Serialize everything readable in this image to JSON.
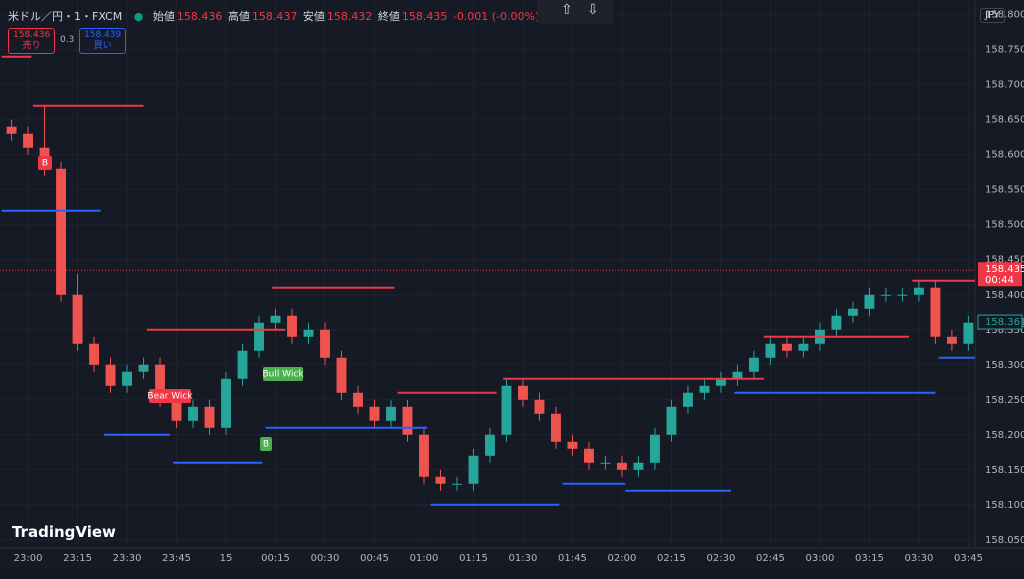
{
  "header": {
    "symbol": "米ドル／円・1・FXCM",
    "open_label": "始値",
    "open": 158.436,
    "high_label": "高値",
    "high": 158.437,
    "low_label": "安値",
    "low": 158.432,
    "close_label": "終値",
    "close": 158.435,
    "change": "-0.001 (-0.00%)"
  },
  "trade": {
    "sell_price": 158.436,
    "sell_label": "売り",
    "spread": 0.3,
    "buy_price": 158.439,
    "buy_label": "買い"
  },
  "currency": "JPY",
  "brand": "TradingView",
  "chart_data": {
    "type": "candlestick",
    "x": [
      -5,
      0,
      5,
      10,
      15,
      20,
      25,
      30,
      35,
      40,
      45,
      50,
      55,
      60,
      65,
      70,
      75,
      80,
      85,
      90,
      95,
      100,
      105,
      110,
      115,
      120,
      125,
      130,
      135,
      140,
      145,
      150,
      155,
      160,
      165,
      170,
      175,
      180,
      185,
      190,
      195,
      200,
      205,
      210,
      215,
      220,
      225,
      230,
      235,
      240,
      245,
      250,
      255,
      260,
      265,
      270,
      275,
      280,
      285
    ],
    "open": [
      158.64,
      158.63,
      158.61,
      158.58,
      158.4,
      158.33,
      158.3,
      158.27,
      158.29,
      158.3,
      158.25,
      158.22,
      158.24,
      158.21,
      158.28,
      158.32,
      158.36,
      158.37,
      158.34,
      158.35,
      158.31,
      158.26,
      158.24,
      158.22,
      158.24,
      158.2,
      158.14,
      158.13,
      158.13,
      158.17,
      158.2,
      158.27,
      158.25,
      158.23,
      158.19,
      158.18,
      158.16,
      158.16,
      158.15,
      158.16,
      158.2,
      158.24,
      158.26,
      158.27,
      158.28,
      158.29,
      158.31,
      158.33,
      158.32,
      158.33,
      158.35,
      158.37,
      158.38,
      158.4,
      158.4,
      158.4,
      158.41,
      158.34,
      158.33
    ],
    "high": [
      158.65,
      158.64,
      158.67,
      158.59,
      158.43,
      158.34,
      158.31,
      158.3,
      158.31,
      158.31,
      158.26,
      158.25,
      158.25,
      158.29,
      158.33,
      158.37,
      158.38,
      158.38,
      158.36,
      158.36,
      158.32,
      158.27,
      158.25,
      158.25,
      158.25,
      158.21,
      158.15,
      158.14,
      158.18,
      158.21,
      158.28,
      158.28,
      158.26,
      158.24,
      158.2,
      158.19,
      158.17,
      158.17,
      158.17,
      158.21,
      158.25,
      158.27,
      158.28,
      158.29,
      158.3,
      158.32,
      158.34,
      158.34,
      158.34,
      158.36,
      158.38,
      158.39,
      158.41,
      158.41,
      158.41,
      158.42,
      158.42,
      158.35,
      158.37
    ],
    "low": [
      158.62,
      158.6,
      158.57,
      158.39,
      158.32,
      158.29,
      158.26,
      158.26,
      158.28,
      158.24,
      158.21,
      158.21,
      158.2,
      158.2,
      158.27,
      158.31,
      158.35,
      158.33,
      158.33,
      158.3,
      158.25,
      158.23,
      158.21,
      158.21,
      158.19,
      158.13,
      158.12,
      158.12,
      158.12,
      158.16,
      158.19,
      158.24,
      158.22,
      158.18,
      158.17,
      158.15,
      158.15,
      158.14,
      158.14,
      158.15,
      158.19,
      158.23,
      158.25,
      158.26,
      158.27,
      158.28,
      158.3,
      158.31,
      158.31,
      158.32,
      158.34,
      158.36,
      158.37,
      158.39,
      158.39,
      158.39,
      158.33,
      158.32,
      158.32
    ],
    "close": [
      158.63,
      158.61,
      158.58,
      158.4,
      158.33,
      158.3,
      158.27,
      158.29,
      158.3,
      158.25,
      158.22,
      158.24,
      158.21,
      158.28,
      158.32,
      158.36,
      158.37,
      158.34,
      158.35,
      158.31,
      158.26,
      158.24,
      158.22,
      158.24,
      158.2,
      158.14,
      158.13,
      158.13,
      158.17,
      158.2,
      158.27,
      158.25,
      158.23,
      158.19,
      158.18,
      158.16,
      158.16,
      158.15,
      158.16,
      158.2,
      158.24,
      158.26,
      158.27,
      158.28,
      158.29,
      158.31,
      158.33,
      158.32,
      158.33,
      158.35,
      158.37,
      158.38,
      158.4,
      158.4,
      158.4,
      158.41,
      158.34,
      158.33,
      158.36
    ],
    "up_color": "#26a69a",
    "down_color": "#ef5350",
    "levels": [
      {
        "color": "#f23645",
        "x": [
          -8,
          1
        ],
        "y": 158.74
      },
      {
        "color": "#f23645",
        "x": [
          1.5,
          35
        ],
        "y": 158.67
      },
      {
        "color": "#2962ff",
        "x": [
          -8,
          22
        ],
        "y": 158.52
      },
      {
        "color": "#f23645",
        "x": [
          36,
          78
        ],
        "y": 158.35
      },
      {
        "color": "#f23645",
        "x": [
          74,
          111
        ],
        "y": 158.41
      },
      {
        "color": "#2962ff",
        "x": [
          23,
          43
        ],
        "y": 158.2
      },
      {
        "color": "#2962ff",
        "x": [
          44,
          71
        ],
        "y": 158.16
      },
      {
        "color": "#2962ff",
        "x": [
          72,
          121
        ],
        "y": 158.21
      },
      {
        "color": "#f23645",
        "x": [
          112,
          142
        ],
        "y": 158.26
      },
      {
        "color": "#f23645",
        "x": [
          144,
          223
        ],
        "y": 158.28
      },
      {
        "color": "#2962ff",
        "x": [
          122,
          161
        ],
        "y": 158.1
      },
      {
        "color": "#2962ff",
        "x": [
          162,
          181
        ],
        "y": 158.13
      },
      {
        "color": "#2962ff",
        "x": [
          181,
          213
        ],
        "y": 158.12
      },
      {
        "color": "#2962ff",
        "x": [
          214,
          275
        ],
        "y": 158.26
      },
      {
        "color": "#f23645",
        "x": [
          223,
          267
        ],
        "y": 158.34
      },
      {
        "color": "#f23645",
        "x": [
          268,
          288
        ],
        "y": 158.42
      },
      {
        "color": "#2962ff",
        "x": [
          276,
          288
        ],
        "y": 158.31
      }
    ],
    "last_price": 158.435,
    "countdown": "00:44",
    "indicator_price": 158.361,
    "annotations": [
      "B",
      "Bear Wick",
      "Bull Wick",
      "B"
    ],
    "xlim": [
      -8.5,
      287
    ],
    "ylim": [
      158.014,
      158.821
    ],
    "xticks": [
      {
        "value": 0,
        "label": "23:00"
      },
      {
        "value": 15,
        "label": "23:15"
      },
      {
        "value": 30,
        "label": "23:30"
      },
      {
        "value": 45,
        "label": "23:45"
      },
      {
        "value": 60,
        "label": "15"
      },
      {
        "value": 75,
        "label": "00:15"
      },
      {
        "value": 90,
        "label": "00:30"
      },
      {
        "value": 105,
        "label": "00:45"
      },
      {
        "value": 120,
        "label": "01:00"
      },
      {
        "value": 135,
        "label": "01:15"
      },
      {
        "value": 150,
        "label": "01:30"
      },
      {
        "value": 165,
        "label": "01:45"
      },
      {
        "value": 180,
        "label": "02:00"
      },
      {
        "value": 195,
        "label": "02:15"
      },
      {
        "value": 210,
        "label": "02:30"
      },
      {
        "value": 225,
        "label": "02:45"
      },
      {
        "value": 240,
        "label": "03:00"
      },
      {
        "value": 255,
        "label": "03:15"
      },
      {
        "value": 270,
        "label": "03:30"
      },
      {
        "value": 285,
        "label": "03:45"
      }
    ],
    "yticks": [
      {
        "value": 158.05,
        "label": "158.050"
      },
      {
        "value": 158.1,
        "label": "158.100"
      },
      {
        "value": 158.15,
        "label": "158.150"
      },
      {
        "value": 158.2,
        "label": "158.200"
      },
      {
        "value": 158.25,
        "label": "158.250"
      },
      {
        "value": 158.3,
        "label": "158.300"
      },
      {
        "value": 158.35,
        "label": "158.350"
      },
      {
        "value": 158.4,
        "label": "158.400"
      },
      {
        "value": 158.45,
        "label": "158.450"
      },
      {
        "value": 158.5,
        "label": "158.500"
      },
      {
        "value": 158.55,
        "label": "158.550"
      },
      {
        "value": 158.6,
        "label": "158.600"
      },
      {
        "value": 158.65,
        "label": "158.650"
      },
      {
        "value": 158.7,
        "label": "158.700"
      },
      {
        "value": 158.75,
        "label": "158.750"
      },
      {
        "value": 158.8,
        "label": "158.800"
      }
    ],
    "grid": true
  }
}
